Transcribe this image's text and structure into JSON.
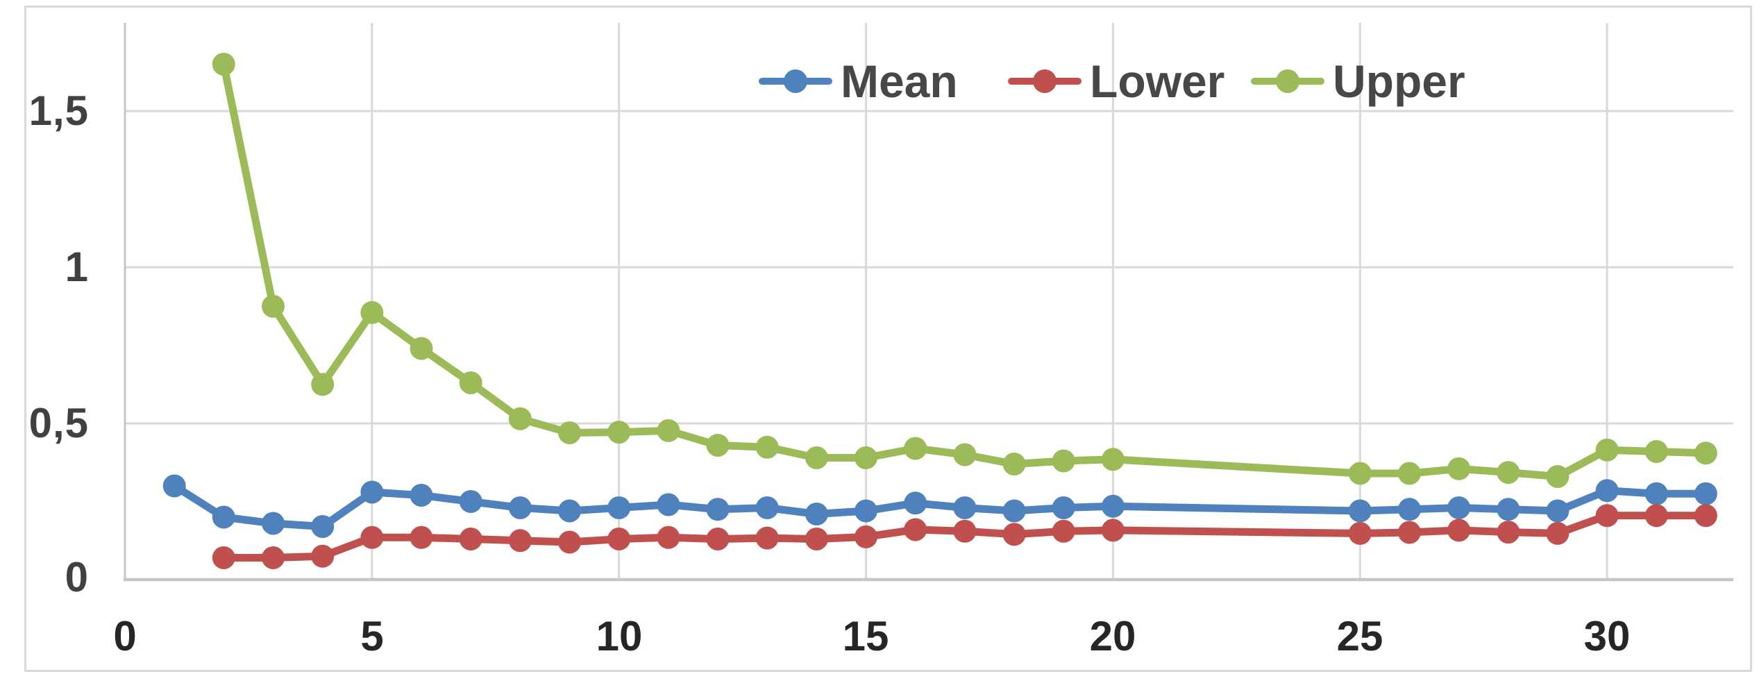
{
  "chart_data": {
    "type": "line",
    "title": "",
    "legend": {
      "position": "top-center",
      "entries": [
        "Mean",
        "Lower",
        "Upper"
      ]
    },
    "x_axis": {
      "label": "",
      "range": [
        0,
        32.6
      ],
      "ticks": [
        0,
        5,
        10,
        15,
        20,
        25,
        30
      ],
      "tick_labels": [
        "0",
        "5",
        "10",
        "15",
        "20",
        "25",
        "30"
      ],
      "gridlines": [
        5,
        10,
        15,
        20,
        25,
        30
      ]
    },
    "y_axis": {
      "label": "",
      "range": [
        0,
        1.79
      ],
      "ticks": [
        0,
        0.5,
        1,
        1.5
      ],
      "tick_labels": [
        "0",
        "0,5",
        "1",
        "1,5"
      ],
      "gridlines": [
        0.5,
        1,
        1.5
      ],
      "decimal_separator": ","
    },
    "grid": true,
    "gridline_color": "#D9D9D9",
    "axis_color": "#C6C6C6",
    "tick_label_color": "#404040",
    "legend_text_color": "#474747",
    "series": [
      {
        "name": "Mean",
        "color": "#4F81BD",
        "points": [
          [
            1,
            0.3
          ],
          [
            2,
            0.2
          ],
          [
            3,
            0.18
          ],
          [
            4,
            0.17
          ],
          [
            5,
            0.28
          ],
          [
            6,
            0.27
          ],
          [
            7,
            0.25
          ],
          [
            8,
            0.23
          ],
          [
            9,
            0.22
          ],
          [
            10,
            0.23
          ],
          [
            11,
            0.24
          ],
          [
            12,
            0.225
          ],
          [
            13,
            0.23
          ],
          [
            14,
            0.21
          ],
          [
            15,
            0.22
          ],
          [
            16,
            0.245
          ],
          [
            17,
            0.23
          ],
          [
            18,
            0.22
          ],
          [
            19,
            0.23
          ],
          [
            20,
            0.235
          ],
          [
            25,
            0.22
          ],
          [
            26,
            0.225
          ],
          [
            27,
            0.23
          ],
          [
            28,
            0.225
          ],
          [
            29,
            0.22
          ],
          [
            30,
            0.285
          ],
          [
            31,
            0.275
          ],
          [
            32,
            0.275
          ]
        ]
      },
      {
        "name": "Lower",
        "color": "#C0504D",
        "points": [
          [
            2,
            0.07
          ],
          [
            3,
            0.07
          ],
          [
            4,
            0.075
          ],
          [
            5,
            0.135
          ],
          [
            6,
            0.135
          ],
          [
            7,
            0.13
          ],
          [
            8,
            0.125
          ],
          [
            9,
            0.12
          ],
          [
            10,
            0.13
          ],
          [
            11,
            0.135
          ],
          [
            12,
            0.13
          ],
          [
            13,
            0.133
          ],
          [
            14,
            0.13
          ],
          [
            15,
            0.137
          ],
          [
            16,
            0.16
          ],
          [
            17,
            0.155
          ],
          [
            18,
            0.145
          ],
          [
            19,
            0.155
          ],
          [
            20,
            0.158
          ],
          [
            25,
            0.148
          ],
          [
            26,
            0.151
          ],
          [
            27,
            0.158
          ],
          [
            28,
            0.152
          ],
          [
            29,
            0.148
          ],
          [
            30,
            0.205
          ],
          [
            31,
            0.205
          ],
          [
            32,
            0.205
          ]
        ]
      },
      {
        "name": "Upper",
        "color": "#9BBB59",
        "points": [
          [
            2,
            1.65
          ],
          [
            3,
            0.875
          ],
          [
            4,
            0.625
          ],
          [
            5,
            0.855
          ],
          [
            6,
            0.74
          ],
          [
            7,
            0.63
          ],
          [
            8,
            0.515
          ],
          [
            9,
            0.47
          ],
          [
            10,
            0.472
          ],
          [
            11,
            0.477
          ],
          [
            12,
            0.43
          ],
          [
            13,
            0.424
          ],
          [
            14,
            0.39
          ],
          [
            15,
            0.39
          ],
          [
            16,
            0.42
          ],
          [
            17,
            0.4
          ],
          [
            18,
            0.37
          ],
          [
            19,
            0.38
          ],
          [
            20,
            0.385
          ],
          [
            25,
            0.34
          ],
          [
            26,
            0.34
          ],
          [
            27,
            0.355
          ],
          [
            28,
            0.343
          ],
          [
            29,
            0.33
          ],
          [
            30,
            0.415
          ],
          [
            31,
            0.41
          ],
          [
            32,
            0.405
          ]
        ]
      }
    ]
  }
}
